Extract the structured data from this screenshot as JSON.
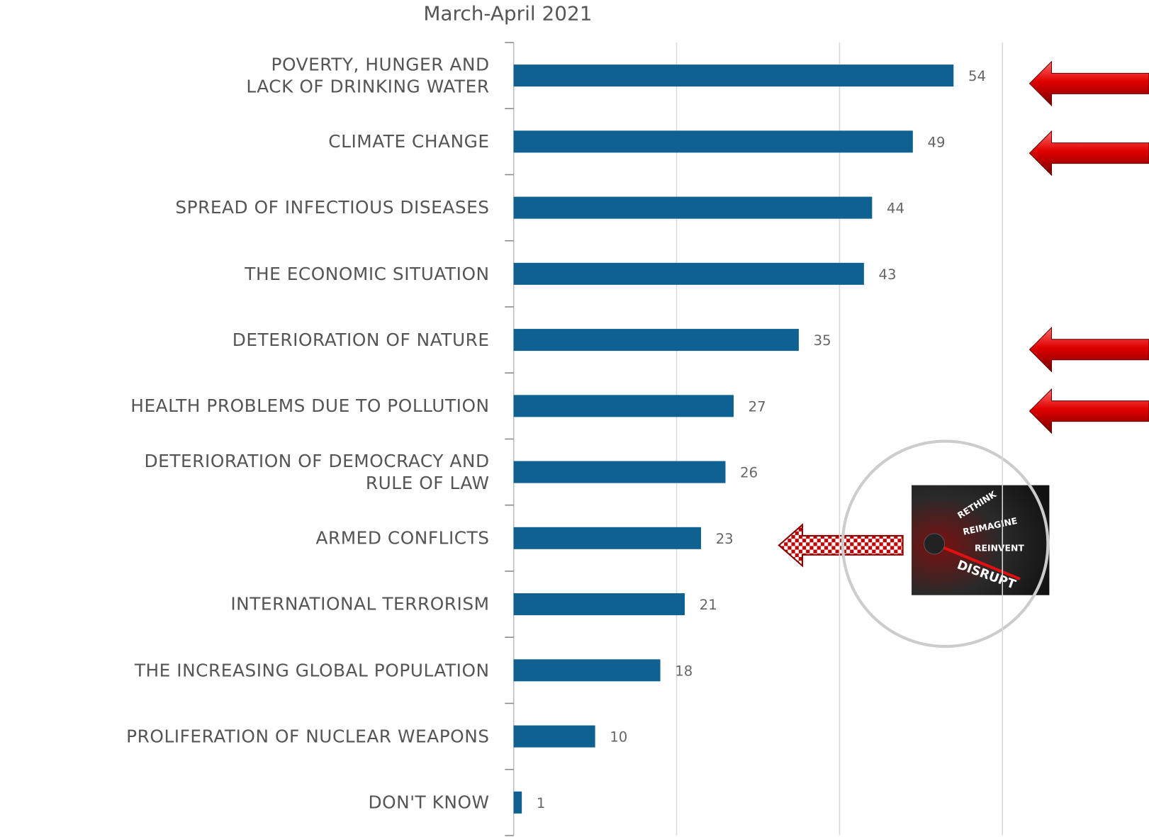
{
  "chart_data": {
    "type": "hbar",
    "title": "March-April 2021",
    "categories": [
      "POVERTY, HUNGER AND\nLACK OF DRINKING WATER",
      "CLIMATE CHANGE",
      "SPREAD OF INFECTIOUS DISEASES",
      "THE ECONOMIC SITUATION",
      "DETERIORATION OF NATURE",
      "HEALTH PROBLEMS DUE TO POLLUTION",
      "DETERIORATION OF DEMOCRACY AND\nRULE OF LAW",
      "ARMED CONFLICTS",
      "INTERNATIONAL TERRORISM",
      "THE INCREASING GLOBAL POPULATION",
      "PROLIFERATION OF NUCLEAR WEAPONS",
      "DON'T KNOW"
    ],
    "values": [
      54,
      49,
      44,
      43,
      35,
      27,
      26,
      23,
      21,
      18,
      10,
      1
    ],
    "color": "#0e6190",
    "xlim": [
      0,
      60
    ],
    "grid_lines": [
      20,
      40,
      60
    ],
    "image_text": [
      "RETHINK",
      "REIMAGINE",
      "REINVENT",
      "DISRUPT"
    ]
  }
}
